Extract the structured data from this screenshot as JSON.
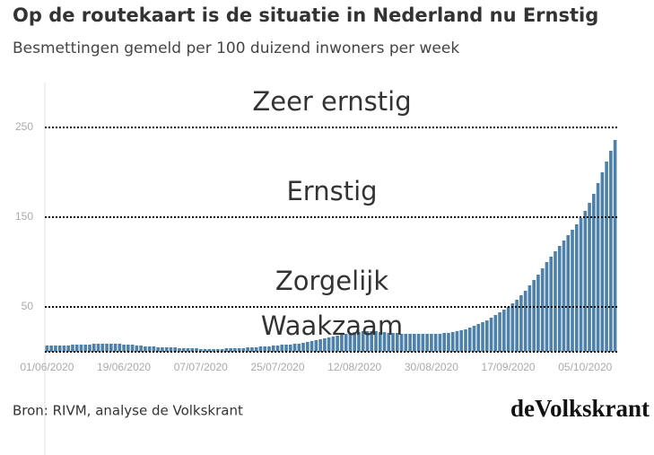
{
  "chart_data": {
    "type": "bar",
    "title": "Op de routekaart is de situatie in Nederland nu Ernstig",
    "subtitle": "Besmettingen gemeld per 100 duizend inwoners per week",
    "source": "Bron: RIVM, analyse de Volkskrant",
    "logo": "deVolkskrant",
    "color": "#4e81a9",
    "ylim": [
      0,
      300
    ],
    "yticks": [
      50,
      150,
      250
    ],
    "levels": [
      {
        "value": 0,
        "label": "Waakzaam"
      },
      {
        "value": 50,
        "label": "Zorgelijk"
      },
      {
        "value": 150,
        "label": "Ernstig"
      },
      {
        "value": 250,
        "label": "Zeer ernstig"
      }
    ],
    "categories": [
      "01/06/2020",
      null,
      null,
      null,
      null,
      null,
      null,
      null,
      null,
      null,
      null,
      null,
      null,
      null,
      null,
      null,
      null,
      null,
      "19/06/2020",
      null,
      null,
      null,
      null,
      null,
      null,
      null,
      null,
      null,
      null,
      null,
      null,
      null,
      null,
      null,
      null,
      null,
      "07/07/2020",
      null,
      null,
      null,
      null,
      null,
      null,
      null,
      null,
      null,
      null,
      null,
      null,
      null,
      null,
      null,
      null,
      null,
      "25/07/2020",
      null,
      null,
      null,
      null,
      null,
      null,
      null,
      null,
      null,
      null,
      null,
      null,
      null,
      null,
      null,
      null,
      null,
      "12/08/2020",
      null,
      null,
      null,
      null,
      null,
      null,
      null,
      null,
      null,
      null,
      null,
      null,
      null,
      null,
      null,
      null,
      null,
      "30/08/2020",
      null,
      null,
      null,
      null,
      null,
      null,
      null,
      null,
      null,
      null,
      null,
      null,
      null,
      null,
      null,
      null,
      null,
      "17/09/2020",
      null,
      null,
      null,
      null,
      null,
      null,
      null,
      null,
      null,
      null,
      null,
      null,
      null,
      null,
      null,
      null,
      null,
      "05/10/2020",
      null,
      null,
      null,
      null,
      null,
      null,
      null
    ],
    "values": [
      7,
      7,
      7,
      7,
      7,
      7,
      8,
      8,
      8,
      8,
      8,
      9,
      9,
      9,
      9,
      9,
      9,
      9,
      8,
      8,
      8,
      7,
      7,
      6,
      6,
      6,
      5,
      5,
      5,
      5,
      5,
      4,
      4,
      4,
      4,
      4,
      3,
      3,
      3,
      3,
      3,
      3,
      4,
      4,
      4,
      4,
      4,
      5,
      5,
      5,
      6,
      6,
      6,
      7,
      7,
      8,
      8,
      8,
      9,
      9,
      10,
      11,
      12,
      13,
      14,
      15,
      16,
      17,
      18,
      19,
      20,
      21,
      22,
      22,
      23,
      23,
      23,
      23,
      22,
      22,
      21,
      21,
      21,
      20,
      20,
      20,
      20,
      20,
      20,
      20,
      20,
      20,
      20,
      21,
      21,
      22,
      23,
      24,
      25,
      27,
      29,
      31,
      33,
      35,
      38,
      41,
      44,
      47,
      50,
      54,
      58,
      63,
      68,
      74,
      80,
      86,
      93,
      100,
      106,
      112,
      118,
      124,
      130,
      136,
      142,
      149,
      157,
      166,
      176,
      188,
      200,
      212,
      224,
      236
    ]
  }
}
